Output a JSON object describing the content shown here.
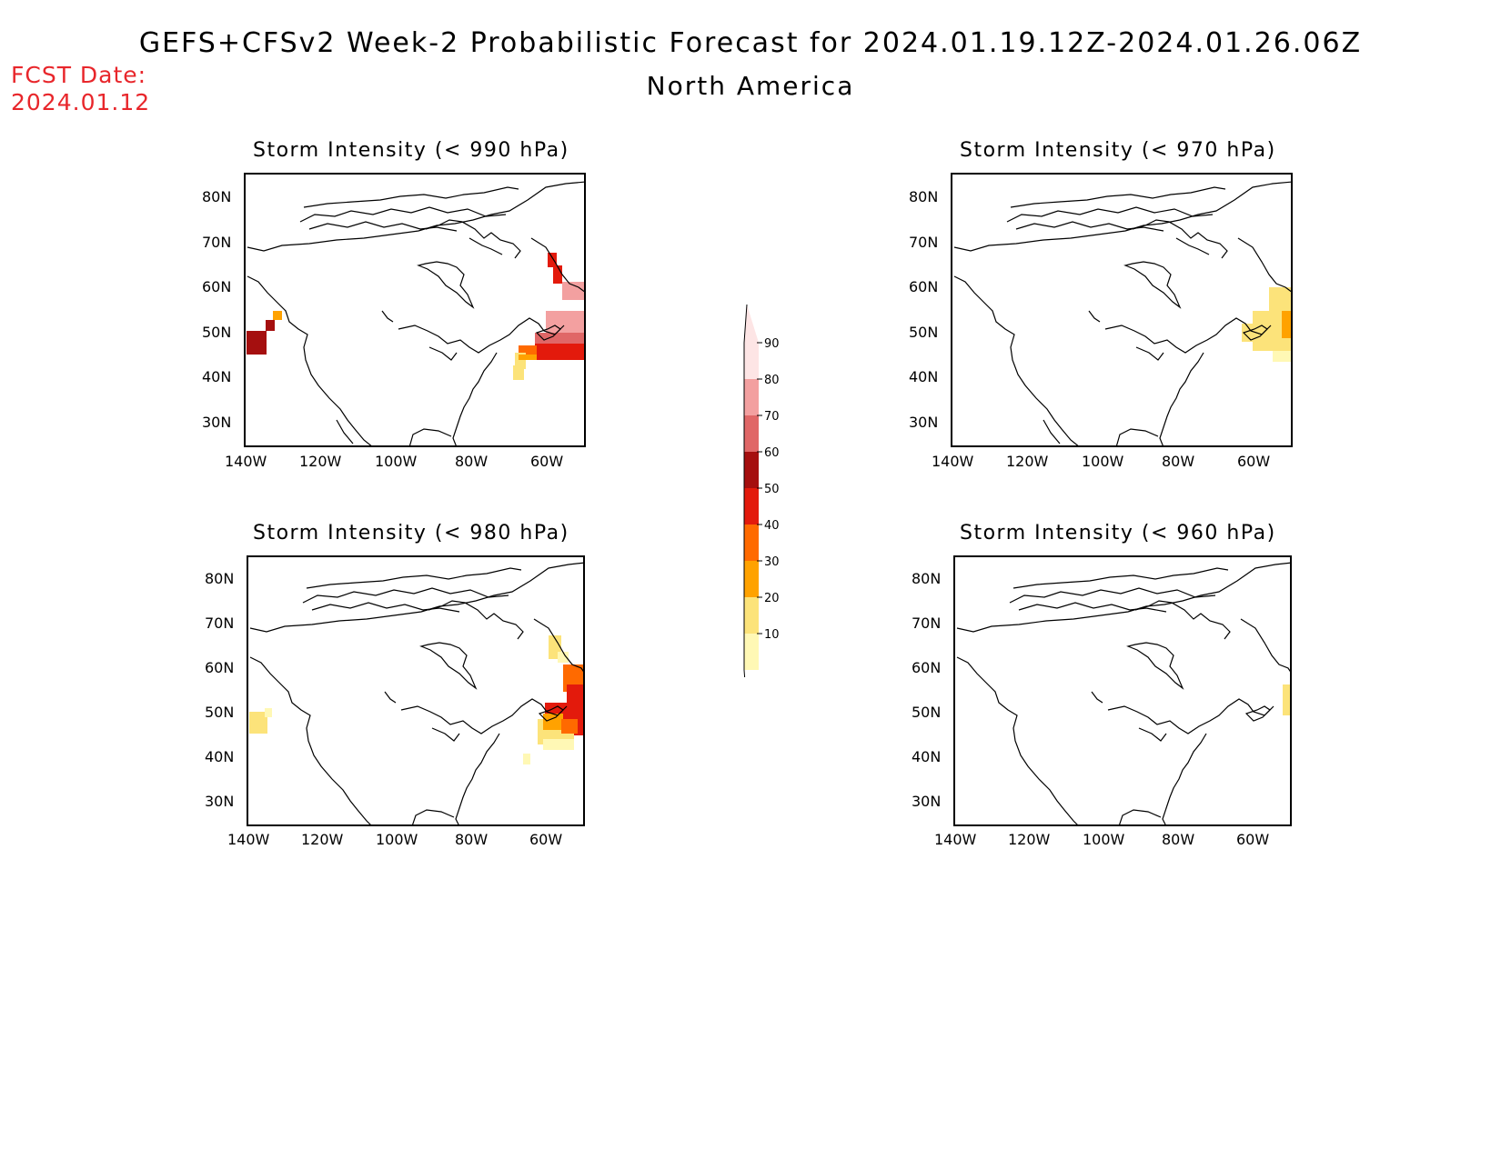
{
  "header": {
    "title": "GEFS+CFSv2 Week-2 Probabilistic Forecast for 2024.01.19.12Z-2024.01.26.06Z",
    "subtitle": "North America",
    "fcst_label": "FCST Date:",
    "fcst_date": "2024.01.12"
  },
  "axes": {
    "lat_labels": [
      "80N",
      "70N",
      "60N",
      "50N",
      "40N",
      "30N"
    ],
    "lon_labels": [
      "140W",
      "120W",
      "100W",
      "80W",
      "60W"
    ]
  },
  "panels": [
    {
      "id": "p990",
      "title": "Storm Intensity (< 990 hPa)"
    },
    {
      "id": "p970",
      "title": "Storm Intensity (< 970 hPa)"
    },
    {
      "id": "p980",
      "title": "Storm Intensity (< 980 hPa)"
    },
    {
      "id": "p960",
      "title": "Storm Intensity (< 960 hPa)"
    }
  ],
  "colorbar": {
    "levels": [
      "90",
      "80",
      "70",
      "60",
      "50",
      "40",
      "30",
      "20",
      "10"
    ],
    "colors": [
      "#fde5e5",
      "#f3a0a0",
      "#e06767",
      "#a50f0f",
      "#e31a0c",
      "#ff6a00",
      "#ffa200",
      "#fce37a",
      "#fff8b5"
    ]
  }
}
